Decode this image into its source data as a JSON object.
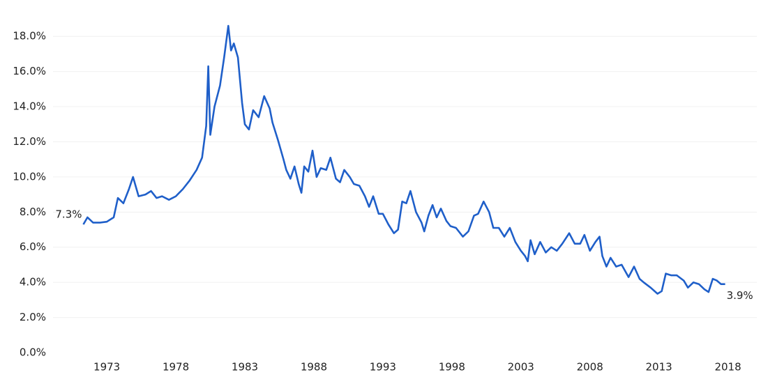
{
  "chart_data": {
    "type": "line",
    "annotations": [
      "7.3%",
      "3.9%"
    ],
    "x": [
      1971.3,
      1971.6,
      1972.0,
      1972.5,
      1973.0,
      1973.5,
      1973.8,
      1974.2,
      1974.6,
      1974.9,
      1975.3,
      1975.8,
      1976.2,
      1976.6,
      1977.0,
      1977.5,
      1978.0,
      1978.5,
      1979.0,
      1979.5,
      1979.9,
      1980.2,
      1980.35,
      1980.5,
      1980.8,
      1981.2,
      1981.5,
      1981.8,
      1982.0,
      1982.2,
      1982.5,
      1982.8,
      1983.0,
      1983.3,
      1983.6,
      1984.0,
      1984.4,
      1984.8,
      1985.0,
      1985.4,
      1985.8,
      1986.0,
      1986.3,
      1986.6,
      1986.9,
      1987.1,
      1987.3,
      1987.6,
      1987.9,
      1988.2,
      1988.5,
      1988.9,
      1989.2,
      1989.6,
      1989.9,
      1990.2,
      1990.6,
      1990.9,
      1991.3,
      1991.7,
      1992.0,
      1992.3,
      1992.7,
      1993.0,
      1993.4,
      1993.8,
      1994.1,
      1994.4,
      1994.7,
      1995.0,
      1995.4,
      1995.8,
      1996.0,
      1996.3,
      1996.6,
      1996.9,
      1997.2,
      1997.6,
      1997.9,
      1998.3,
      1998.8,
      1999.2,
      1999.6,
      1999.9,
      2000.3,
      2000.7,
      2001.0,
      2001.4,
      2001.8,
      2002.2,
      2002.6,
      2003.0,
      2003.3,
      2003.5,
      2003.7,
      2004.0,
      2004.4,
      2004.8,
      2005.2,
      2005.6,
      2006.0,
      2006.5,
      2006.9,
      2007.3,
      2007.6,
      2008.0,
      2008.4,
      2008.7,
      2008.9,
      2009.2,
      2009.5,
      2009.9,
      2010.3,
      2010.8,
      2011.2,
      2011.6,
      2011.9,
      2012.4,
      2012.9,
      2013.2,
      2013.5,
      2013.9,
      2014.3,
      2014.8,
      2015.1,
      2015.5,
      2015.9,
      2016.3,
      2016.6,
      2016.9,
      2017.2,
      2017.5,
      2017.8
    ],
    "series": [
      {
        "color": "#1f5fc9",
        "values": [
          7.3,
          7.7,
          7.4,
          7.4,
          7.45,
          7.7,
          8.8,
          8.5,
          9.3,
          10.0,
          8.9,
          9.0,
          9.2,
          8.8,
          8.9,
          8.7,
          8.9,
          9.3,
          9.8,
          10.4,
          11.1,
          12.9,
          16.3,
          12.4,
          14.0,
          15.2,
          16.8,
          18.6,
          17.2,
          17.6,
          16.8,
          14.2,
          13.0,
          12.7,
          13.8,
          13.4,
          14.6,
          13.9,
          13.1,
          12.1,
          11.0,
          10.4,
          9.9,
          10.6,
          9.6,
          9.1,
          10.6,
          10.3,
          11.5,
          10.0,
          10.5,
          10.4,
          11.1,
          9.9,
          9.7,
          10.4,
          10.0,
          9.6,
          9.5,
          8.9,
          8.3,
          8.9,
          7.9,
          7.9,
          7.3,
          6.8,
          7.0,
          8.6,
          8.5,
          9.2,
          8.0,
          7.4,
          6.9,
          7.8,
          8.4,
          7.7,
          8.2,
          7.5,
          7.2,
          7.1,
          6.6,
          6.9,
          7.8,
          7.9,
          8.6,
          8.0,
          7.1,
          7.1,
          6.6,
          7.1,
          6.3,
          5.8,
          5.5,
          5.2,
          6.4,
          5.6,
          6.3,
          5.7,
          6.0,
          5.8,
          6.2,
          6.8,
          6.2,
          6.2,
          6.7,
          5.8,
          6.3,
          6.6,
          5.5,
          4.9,
          5.4,
          4.9,
          5.0,
          4.3,
          4.9,
          4.2,
          4.0,
          3.7,
          3.35,
          3.5,
          4.5,
          4.4,
          4.4,
          4.1,
          3.7,
          4.0,
          3.9,
          3.6,
          3.45,
          4.2,
          4.1,
          3.9,
          3.9
        ]
      }
    ],
    "xlim": [
      1969,
      2020.5
    ],
    "xticks": [
      1973,
      1978,
      1983,
      1988,
      1993,
      1998,
      2003,
      2008,
      2013,
      2018
    ],
    "ylim": [
      0,
      19
    ],
    "yticks": [
      {
        "value": 0,
        "label": "0.0%"
      },
      {
        "value": 2,
        "label": "2.0%"
      },
      {
        "value": 4,
        "label": "4.0%"
      },
      {
        "value": 6,
        "label": "6.0%"
      },
      {
        "value": 8,
        "label": "8.0%"
      },
      {
        "value": 10,
        "label": "10.0%"
      },
      {
        "value": 12,
        "label": "12.0%"
      },
      {
        "value": 14,
        "label": "14.0%"
      },
      {
        "value": 16,
        "label": "16.0%"
      },
      {
        "value": 18,
        "label": "18.0%"
      }
    ],
    "grid": true
  }
}
